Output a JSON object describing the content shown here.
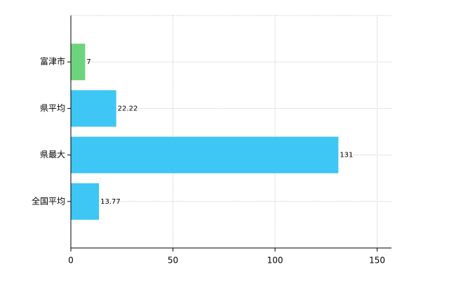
{
  "chart_data": {
    "type": "barh",
    "categories": [
      "富津市",
      "県平均",
      "県最大",
      "全国平均"
    ],
    "values": [
      7,
      22.22,
      131,
      13.77
    ],
    "colors": [
      "#6dd47e",
      "#3ec6f5",
      "#3ec6f5",
      "#3ec6f5"
    ],
    "xlim": [
      0,
      157
    ],
    "xticks": [
      0,
      50,
      100,
      150
    ],
    "grid": true
  }
}
